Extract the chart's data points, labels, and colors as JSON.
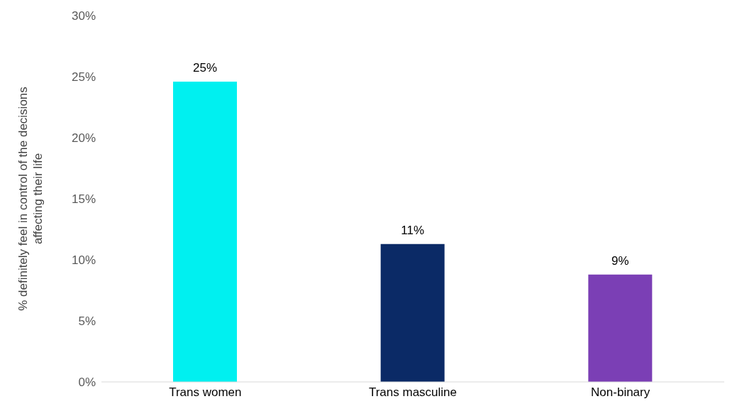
{
  "chart_data": {
    "type": "bar",
    "ylabel": "%  definitely feel in control of the decisions affecting their life",
    "categories": [
      "Trans women",
      "Trans masculine",
      "Non-binary"
    ],
    "values": [
      24.6,
      11.3,
      8.8
    ],
    "colors": [
      "#00f0f0",
      "#0b2a66",
      "#7b3fb5"
    ],
    "value_labels": [
      "25%",
      "11%",
      "9%"
    ],
    "ylim": [
      0,
      30
    ],
    "yticks": [
      {
        "value": 0,
        "label": "0%"
      },
      {
        "value": 5,
        "label": "5%"
      },
      {
        "value": 10,
        "label": "10%"
      },
      {
        "value": 15,
        "label": "15%"
      },
      {
        "value": 20,
        "label": "20%"
      },
      {
        "value": 25,
        "label": "25%"
      },
      {
        "value": 30,
        "label": "30%"
      }
    ],
    "grid": false,
    "legend": false
  }
}
